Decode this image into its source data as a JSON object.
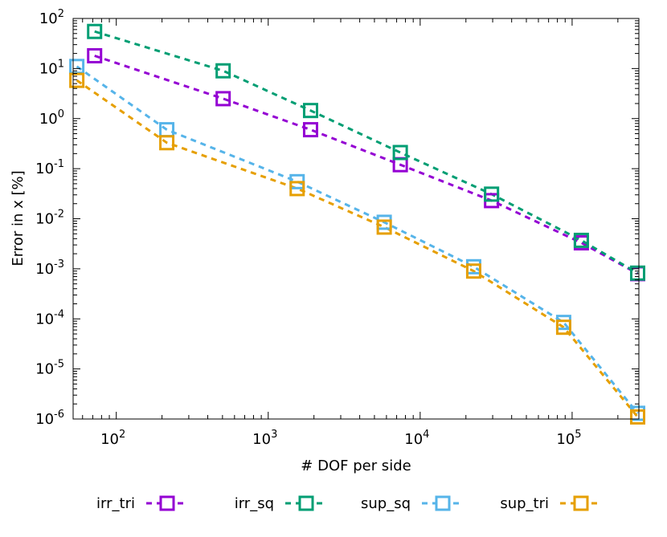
{
  "chart_data": {
    "type": "line",
    "title": "",
    "xlabel": "# DOF per side",
    "ylabel": "Error in x [%]",
    "xscale": "log",
    "yscale": "log",
    "xlim": [
      52,
      275000
    ],
    "ylim": [
      1e-06,
      100
    ],
    "x_ticks": [
      {
        "value": 100,
        "base": "10",
        "exp": "2"
      },
      {
        "value": 1000,
        "base": "10",
        "exp": "3"
      },
      {
        "value": 10000,
        "base": "10",
        "exp": "4"
      },
      {
        "value": 100000,
        "base": "10",
        "exp": "5"
      }
    ],
    "y_ticks": [
      {
        "value": 1e-06,
        "base": "10",
        "exp": "-6"
      },
      {
        "value": 1e-05,
        "base": "10",
        "exp": "-5"
      },
      {
        "value": 0.0001,
        "base": "10",
        "exp": "-4"
      },
      {
        "value": 0.001,
        "base": "10",
        "exp": "-3"
      },
      {
        "value": 0.01,
        "base": "10",
        "exp": "-2"
      },
      {
        "value": 0.1,
        "base": "10",
        "exp": "-1"
      },
      {
        "value": 1,
        "base": "10",
        "exp": "0"
      },
      {
        "value": 10,
        "base": "10",
        "exp": "1"
      },
      {
        "value": 100,
        "base": "10",
        "exp": "2"
      }
    ],
    "grid": false,
    "legend_position": "bottom",
    "series": [
      {
        "name": "irr_tri",
        "color": "#9400d3",
        "x": [
          72,
          505,
          1900,
          7400,
          29500,
          115000,
          270000
        ],
        "y": [
          18,
          2.5,
          0.6,
          0.12,
          0.023,
          0.0033,
          0.0008
        ]
      },
      {
        "name": "irr_sq",
        "color": "#009e73",
        "x": [
          72,
          505,
          1900,
          7400,
          29500,
          115000,
          270000
        ],
        "y": [
          55,
          9,
          1.45,
          0.21,
          0.031,
          0.0037,
          0.00082
        ]
      },
      {
        "name": "sup_sq",
        "color": "#56b4e9",
        "x": [
          55,
          215,
          1550,
          5800,
          22500,
          88000,
          270000
        ],
        "y": [
          11,
          0.6,
          0.055,
          0.0085,
          0.0011,
          8.5e-05,
          1.3e-06
        ]
      },
      {
        "name": "sup_tri",
        "color": "#e69f00",
        "x": [
          55,
          215,
          1550,
          5800,
          22500,
          88000,
          270000
        ],
        "y": [
          5.8,
          0.33,
          0.04,
          0.0068,
          0.0009,
          6.8e-05,
          1.1e-06
        ]
      }
    ]
  }
}
